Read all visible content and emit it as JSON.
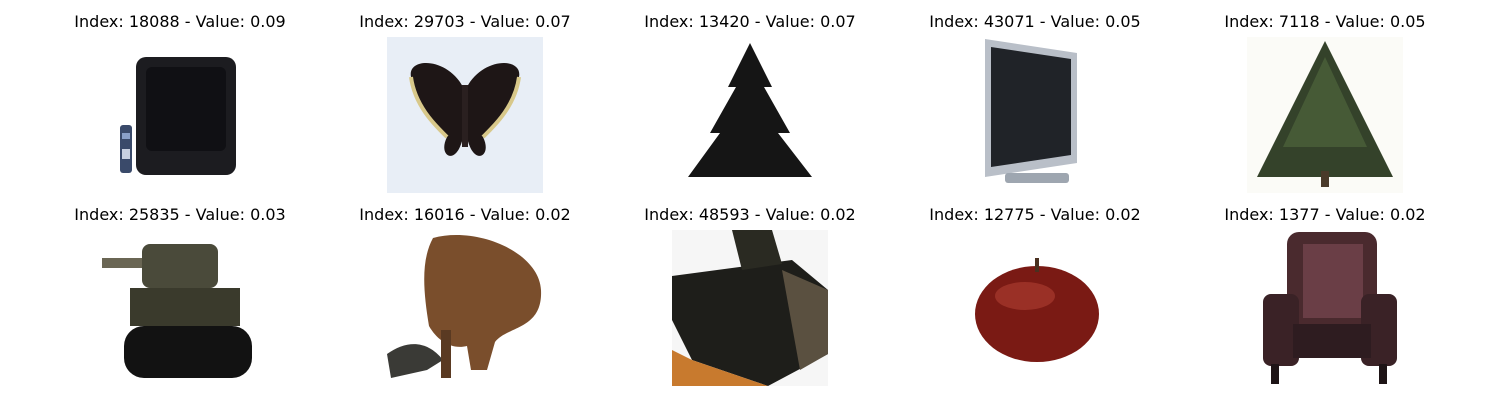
{
  "items": [
    {
      "index": "18088",
      "value": "0.09",
      "caption": "Index: 18088 - Value: 0.09",
      "subject": "television"
    },
    {
      "index": "29703",
      "value": "0.07",
      "caption": "Index: 29703 - Value: 0.07",
      "subject": "butterfly"
    },
    {
      "index": "13420",
      "value": "0.07",
      "caption": "Index: 13420 - Value: 0.07",
      "subject": "pine-tree"
    },
    {
      "index": "43071",
      "value": "0.05",
      "caption": "Index: 43071 - Value: 0.05",
      "subject": "flat-monitor"
    },
    {
      "index": "7118",
      "value": "0.05",
      "caption": "Index: 7118 - Value: 0.05",
      "subject": "fir-tree"
    },
    {
      "index": "25835",
      "value": "0.03",
      "caption": "Index: 25835 - Value: 0.03",
      "subject": "tank"
    },
    {
      "index": "16016",
      "value": "0.02",
      "caption": "Index: 16016 - Value: 0.02",
      "subject": "bison"
    },
    {
      "index": "48593",
      "value": "0.02",
      "caption": "Index: 48593 - Value: 0.02",
      "subject": "tank-closeup"
    },
    {
      "index": "12775",
      "value": "0.02",
      "caption": "Index: 12775 - Value: 0.02",
      "subject": "apple"
    },
    {
      "index": "1377",
      "value": "0.02",
      "caption": "Index: 1377 - Value: 0.02",
      "subject": "armchair"
    }
  ]
}
